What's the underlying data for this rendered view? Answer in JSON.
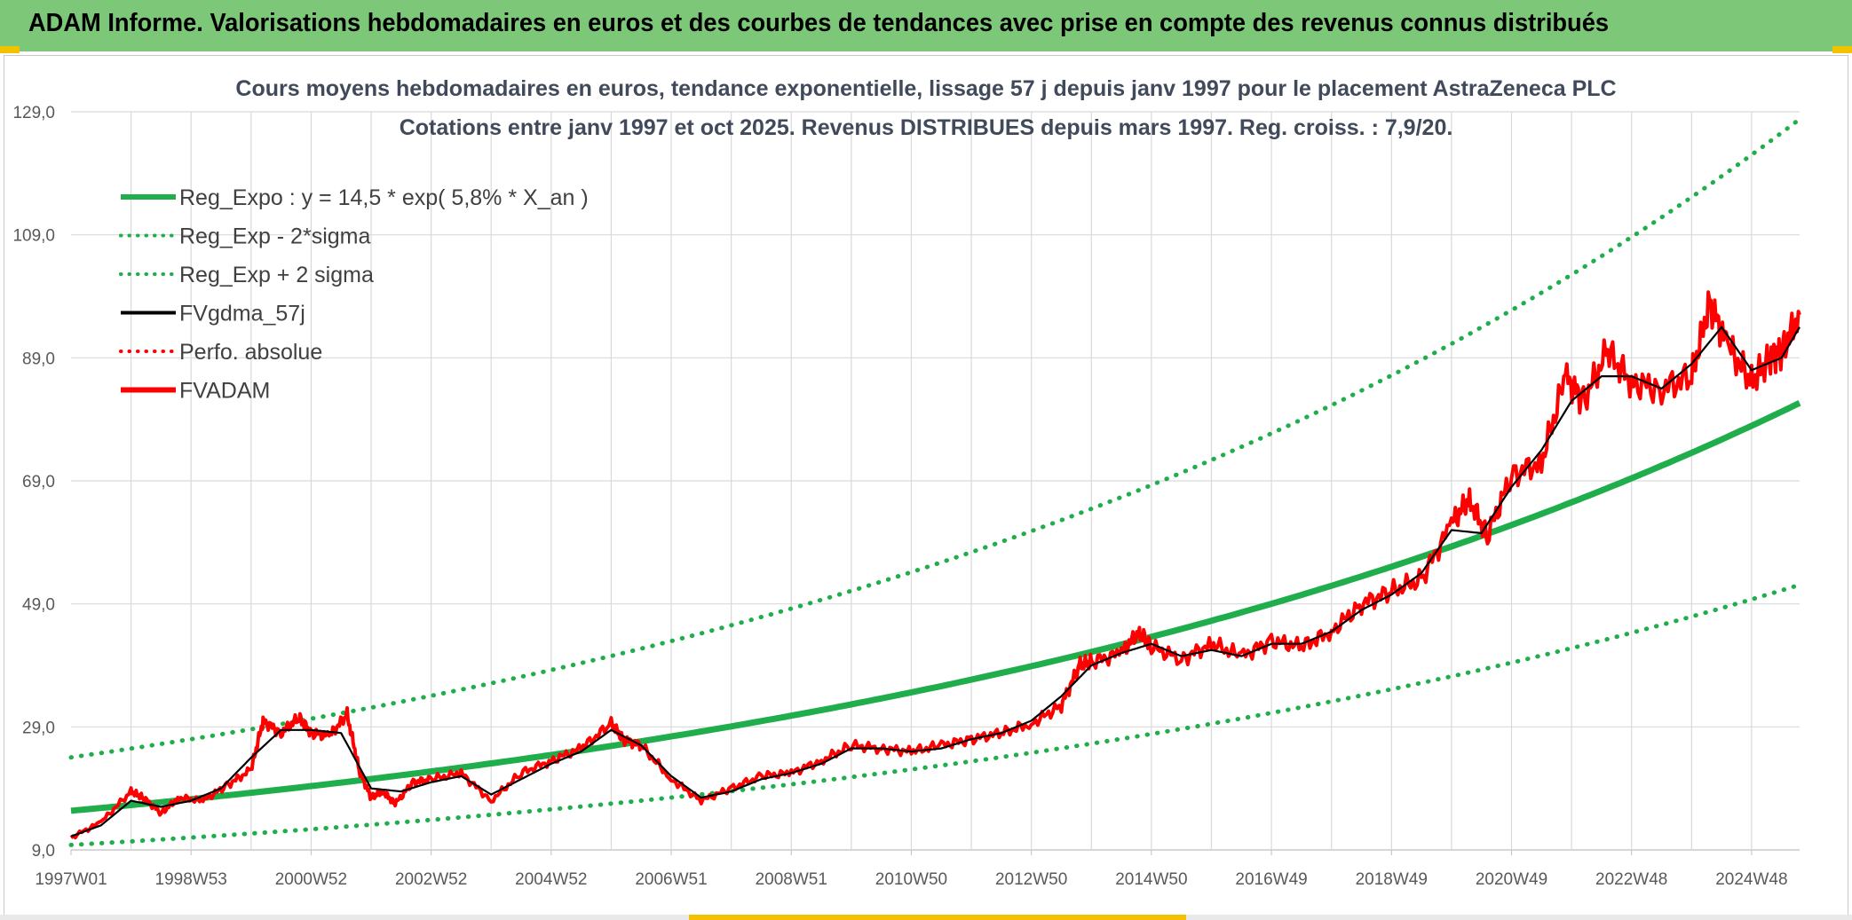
{
  "banner": {
    "title": "ADAM Informe. Valorisations hebdomadaires en euros et des courbes de tendances avec prise en compte des revenus connus distribués"
  },
  "colors": {
    "banner": "#7dc878",
    "regression": "#1fae4b",
    "price": "#ff0000",
    "smooth": "#000000",
    "grid": "#d9d9d9"
  },
  "chart_data": {
    "type": "line",
    "title": "Cours moyens hebdomadaires en euros, tendance exponentielle, lissage 57 j depuis janv 1997 pour le placement AstraZeneca PLC",
    "subtitle": "Cotations entre janv 1997 et oct 2025. Revenus DISTRIBUES depuis mars 1997. Reg. croiss. : 7,9/20.",
    "xlabel": "",
    "ylabel": "",
    "ylim": [
      9,
      129
    ],
    "xlim": [
      1997.0,
      2025.8
    ],
    "y_ticks": [
      "9,0",
      "29,0",
      "49,0",
      "69,0",
      "89,0",
      "109,0",
      "129,0"
    ],
    "x_ticks": [
      "1997W01",
      "1998W53",
      "2000W52",
      "2002W52",
      "2004W52",
      "2006W51",
      "2008W51",
      "2010W50",
      "2012W50",
      "2014W50",
      "2016W49",
      "2018W49",
      "2020W49",
      "2022W48",
      "2024W48"
    ],
    "grid": true,
    "legend_position": "top-left",
    "legend": [
      {
        "label": "Reg_Expo : y = 14,5 * exp( 5,8% *  X_an )",
        "style": "solid-thick",
        "color": "#1fae4b"
      },
      {
        "label": "Reg_Exp - 2*sigma",
        "style": "dotted",
        "color": "#1fae4b"
      },
      {
        "label": "Reg_Exp + 2 sigma",
        "style": "dotted",
        "color": "#1fae4b"
      },
      {
        "label": "FVgdma_57j",
        "style": "solid",
        "color": "#000000"
      },
      {
        "label": "Perfo. absolue",
        "style": "dotted",
        "color": "#ff0000"
      },
      {
        "label": "FVADAM",
        "style": "solid-thick",
        "color": "#ff0000"
      }
    ],
    "regression": {
      "a": 14.5,
      "rate": 0.058,
      "lower_factor": 0.638,
      "upper_factor": 1.565
    },
    "series": [
      {
        "name": "FVADAM",
        "x": [
          1997.0,
          1997.5,
          1998.0,
          1998.2,
          1998.5,
          1998.8,
          1999.2,
          1999.6,
          2000.0,
          2000.2,
          2000.5,
          2000.8,
          2001.0,
          2001.3,
          2001.6,
          2001.8,
          2002.0,
          2002.2,
          2002.4,
          2002.7,
          2003.0,
          2003.5,
          2004.0,
          2004.5,
          2005.0,
          2005.5,
          2006.0,
          2006.2,
          2006.5,
          2007.0,
          2007.5,
          2008.0,
          2008.5,
          2009.0,
          2009.5,
          2010.0,
          2010.5,
          2011.0,
          2011.5,
          2012.0,
          2012.5,
          2013.0,
          2013.5,
          2013.8,
          2014.0,
          2014.5,
          2014.8,
          2015.0,
          2015.5,
          2016.0,
          2016.5,
          2017.0,
          2017.5,
          2018.0,
          2018.5,
          2019.0,
          2019.5,
          2020.0,
          2020.3,
          2020.6,
          2021.0,
          2021.5,
          2021.9,
          2022.2,
          2022.6,
          2023.0,
          2023.5,
          2024.0,
          2024.3,
          2024.6,
          2025.0,
          2025.3,
          2025.5,
          2025.8
        ],
        "values": [
          11.0,
          13.5,
          18.5,
          17.5,
          15.0,
          17.5,
          17.0,
          19.5,
          22.0,
          30.0,
          28.0,
          30.5,
          28.0,
          27.5,
          31.0,
          22.0,
          17.5,
          18.5,
          16.5,
          20.0,
          20.5,
          21.5,
          17.0,
          21.5,
          23.5,
          25.5,
          29.5,
          27.0,
          26.0,
          20.5,
          17.0,
          19.0,
          21.0,
          21.5,
          23.5,
          26.0,
          25.5,
          25.0,
          26.0,
          27.0,
          28.0,
          29.5,
          32.5,
          39.0,
          39.5,
          41.0,
          44.5,
          42.0,
          40.0,
          42.5,
          40.5,
          43.0,
          42.0,
          44.5,
          49.0,
          51.0,
          53.0,
          62.0,
          66.0,
          60.0,
          70.0,
          72.0,
          86.0,
          82.0,
          90.0,
          85.0,
          84.0,
          86.0,
          98.0,
          91.0,
          85.0,
          89.0,
          90.0,
          96.0
        ]
      },
      {
        "name": "FVgdma_57j",
        "x": [
          1997.0,
          1997.5,
          1998.0,
          1998.5,
          1999.0,
          1999.5,
          2000.0,
          2000.5,
          2001.0,
          2001.5,
          2002.0,
          2002.5,
          2003.0,
          2003.5,
          2004.0,
          2004.5,
          2005.0,
          2005.5,
          2006.0,
          2006.5,
          2007.0,
          2007.5,
          2008.0,
          2008.5,
          2009.0,
          2009.5,
          2010.0,
          2010.5,
          2011.0,
          2011.5,
          2012.0,
          2012.5,
          2013.0,
          2013.5,
          2014.0,
          2014.5,
          2015.0,
          2015.5,
          2016.0,
          2016.5,
          2017.0,
          2017.5,
          2018.0,
          2018.5,
          2019.0,
          2019.5,
          2020.0,
          2020.5,
          2021.0,
          2021.5,
          2022.0,
          2022.5,
          2023.0,
          2023.5,
          2024.0,
          2024.5,
          2025.0,
          2025.5,
          2025.8
        ],
        "values": [
          11.2,
          13.0,
          17.0,
          16.0,
          17.0,
          19.0,
          24.0,
          28.5,
          28.5,
          28.0,
          19.0,
          18.5,
          20.0,
          21.0,
          18.0,
          20.5,
          23.0,
          25.0,
          28.5,
          26.0,
          21.0,
          17.5,
          18.5,
          20.5,
          21.5,
          23.0,
          25.5,
          25.5,
          25.0,
          25.5,
          27.0,
          28.0,
          30.0,
          34.0,
          39.0,
          41.0,
          42.5,
          40.5,
          41.5,
          40.5,
          42.5,
          42.5,
          44.5,
          48.0,
          50.5,
          54.0,
          61.0,
          60.5,
          68.0,
          74.0,
          82.0,
          86.0,
          86.0,
          84.0,
          88.0,
          94.0,
          87.0,
          89.0,
          94.0
        ]
      }
    ]
  }
}
